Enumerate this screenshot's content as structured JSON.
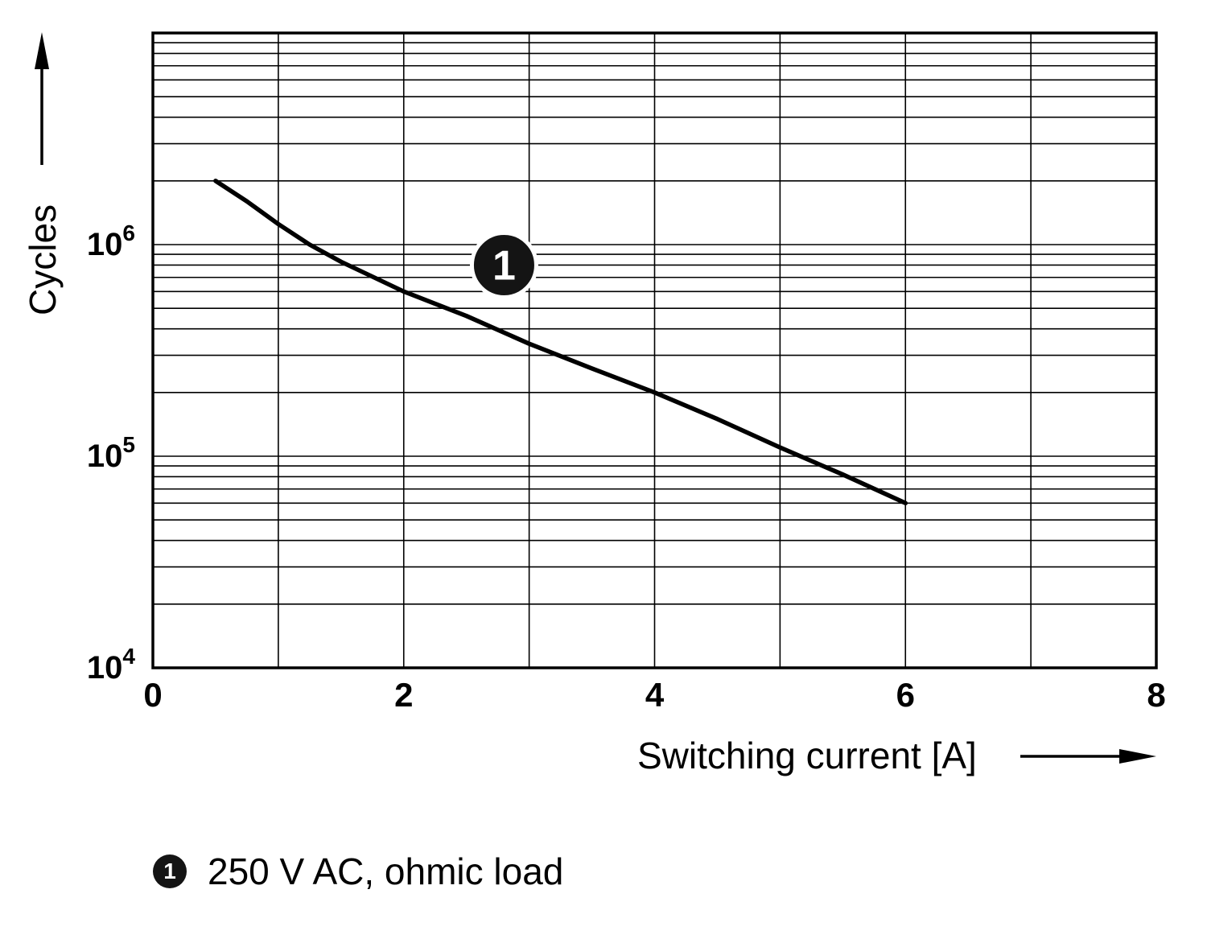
{
  "chart_data": {
    "type": "line",
    "title": "",
    "xlabel": "Switching current [A]",
    "ylabel": "Cycles",
    "x_range": [
      0,
      8
    ],
    "x_ticks": [
      0,
      2,
      4,
      6,
      8
    ],
    "x_gridline_step": 1,
    "y_scale": "log",
    "y_range": [
      10000,
      10000000
    ],
    "y_tick_exponents": [
      4,
      5,
      6
    ],
    "grid": "on",
    "series": [
      {
        "name": "1",
        "label": "250 V AC, ohmic load",
        "x": [
          0.5,
          0.75,
          1,
          1.25,
          1.5,
          2,
          2.5,
          3,
          3.5,
          4,
          4.5,
          5,
          5.5,
          6
        ],
        "y": [
          2000000,
          1600000,
          1250000,
          1000000,
          830000,
          600000,
          460000,
          340000,
          260000,
          200000,
          150000,
          110000,
          82000,
          60000
        ]
      }
    ],
    "marker": {
      "label": "1",
      "x": 2.8,
      "y": 800000
    }
  },
  "legend": {
    "marker_label": "1",
    "text": "250 V AC, ohmic load"
  }
}
